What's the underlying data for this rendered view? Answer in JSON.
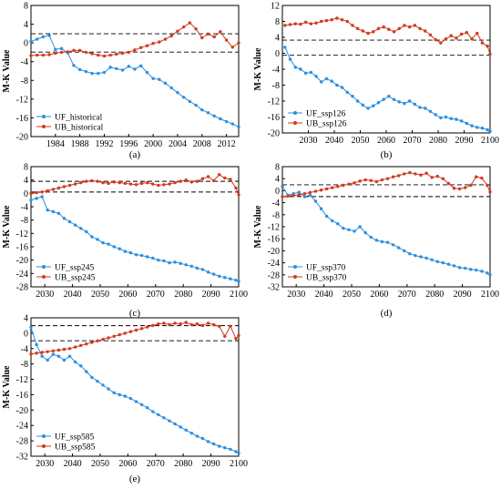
{
  "colors": {
    "uf": "#2b8fe0",
    "ub": "#d03a1e",
    "axis": "#000000",
    "threshold": "#000000"
  },
  "chart_data": [
    {
      "type": "line",
      "panel": "(a)",
      "ylabel": "M-K Value",
      "xlim": [
        1980,
        2014
      ],
      "ylim": [
        -20,
        8
      ],
      "xticks": [
        1984,
        1988,
        1992,
        1996,
        2000,
        2004,
        2008,
        2012
      ],
      "yticks": [
        -20,
        -16,
        -12,
        -8,
        -4,
        0,
        4,
        8
      ],
      "thresholds": [
        1.96,
        -1.96
      ],
      "legend_position": "bottom-left",
      "series": [
        {
          "name": "UF_historical",
          "role": "uf",
          "x": [
            1980,
            1981,
            1982,
            1983,
            1984,
            1985,
            1986,
            1987,
            1988,
            1989,
            1990,
            1991,
            1992,
            1993,
            1994,
            1995,
            1996,
            1997,
            1998,
            1999,
            2000,
            2001,
            2002,
            2003,
            2004,
            2005,
            2006,
            2007,
            2008,
            2009,
            2010,
            2011,
            2012,
            2013,
            2014
          ],
          "y": [
            0.3,
            0.8,
            1.3,
            1.6,
            -1.4,
            -1.2,
            -2.1,
            -4.8,
            -5.7,
            -6.1,
            -6.5,
            -6.5,
            -6.3,
            -5.2,
            -5.5,
            -5.8,
            -5.0,
            -5.6,
            -4.9,
            -6.3,
            -7.6,
            -7.8,
            -8.6,
            -9.6,
            -10.6,
            -11.6,
            -12.5,
            -13.3,
            -14.3,
            -14.9,
            -15.6,
            -16.2,
            -16.8,
            -17.3,
            -17.9
          ]
        },
        {
          "name": "UB_historical",
          "role": "ub",
          "x": [
            1980,
            1981,
            1982,
            1983,
            1984,
            1985,
            1986,
            1987,
            1988,
            1989,
            1990,
            1991,
            1992,
            1993,
            1994,
            1995,
            1996,
            1997,
            1998,
            1999,
            2000,
            2001,
            2002,
            2003,
            2004,
            2005,
            2006,
            2007,
            2008,
            2009,
            2010,
            2011,
            2012,
            2013,
            2014
          ],
          "y": [
            -2.7,
            -2.6,
            -2.6,
            -2.5,
            -2.2,
            -2.0,
            -1.9,
            -1.6,
            -1.6,
            -2.0,
            -2.3,
            -2.6,
            -2.8,
            -2.6,
            -2.4,
            -2.2,
            -2.0,
            -1.5,
            -1.0,
            -0.6,
            -0.1,
            0.2,
            0.8,
            1.5,
            2.5,
            3.4,
            4.3,
            3.0,
            1.1,
            1.9,
            1.3,
            2.4,
            0.6,
            -0.9,
            0.0
          ]
        }
      ]
    },
    {
      "type": "line",
      "panel": "(b)",
      "ylabel": "M-K Value",
      "xlim": [
        2020,
        2100
      ],
      "ylim": [
        -20,
        12
      ],
      "xticks": [
        2030,
        2040,
        2050,
        2060,
        2070,
        2080,
        2090,
        2100
      ],
      "yticks": [
        -20,
        -16,
        -12,
        -8,
        -4,
        0,
        4,
        8,
        12
      ],
      "thresholds": [
        3.3,
        -0.5
      ],
      "legend_position": "bottom-left",
      "series": [
        {
          "name": "UF_ssp126",
          "role": "uf",
          "x": [
            2021,
            2023,
            2025,
            2027,
            2029,
            2031,
            2033,
            2035,
            2037,
            2039,
            2041,
            2043,
            2045,
            2047,
            2049,
            2051,
            2053,
            2055,
            2057,
            2059,
            2061,
            2063,
            2065,
            2067,
            2069,
            2071,
            2073,
            2075,
            2077,
            2079,
            2081,
            2083,
            2085,
            2087,
            2089,
            2091,
            2093,
            2095,
            2097,
            2099,
            2100
          ],
          "y": [
            1.5,
            -1.5,
            -3.5,
            -4.0,
            -5.0,
            -4.8,
            -5.8,
            -7.2,
            -6.4,
            -7.0,
            -8.0,
            -8.6,
            -9.8,
            -10.8,
            -12.0,
            -13.0,
            -13.8,
            -13.2,
            -12.4,
            -11.6,
            -10.8,
            -11.6,
            -12.2,
            -12.6,
            -12.0,
            -12.8,
            -13.6,
            -13.8,
            -14.6,
            -15.4,
            -16.2,
            -16.0,
            -16.4,
            -16.6,
            -17.0,
            -17.6,
            -18.2,
            -18.6,
            -18.8,
            -19.2,
            -19.6
          ]
        },
        {
          "name": "UB_ssp126",
          "role": "ub",
          "x": [
            2021,
            2023,
            2025,
            2027,
            2029,
            2031,
            2033,
            2035,
            2037,
            2039,
            2041,
            2043,
            2045,
            2047,
            2049,
            2051,
            2053,
            2055,
            2057,
            2059,
            2061,
            2063,
            2065,
            2067,
            2069,
            2071,
            2073,
            2075,
            2077,
            2079,
            2081,
            2083,
            2085,
            2087,
            2089,
            2091,
            2093,
            2095,
            2097,
            2099,
            2100
          ],
          "y": [
            7.0,
            7.2,
            7.4,
            7.3,
            7.8,
            7.4,
            7.6,
            8.0,
            8.2,
            8.4,
            8.8,
            8.4,
            8.0,
            7.0,
            6.2,
            5.6,
            5.0,
            5.4,
            6.2,
            6.6,
            6.0,
            5.4,
            6.2,
            7.0,
            6.6,
            7.0,
            6.2,
            5.6,
            4.6,
            3.4,
            2.6,
            3.6,
            4.4,
            3.8,
            4.8,
            5.2,
            3.6,
            5.0,
            2.6,
            1.8,
            -0.2
          ]
        }
      ]
    },
    {
      "type": "line",
      "panel": "(c)",
      "ylabel": "M-K Value",
      "xlim": [
        2025,
        2100
      ],
      "ylim": [
        -28,
        8
      ],
      "xticks": [
        2030,
        2040,
        2050,
        2060,
        2070,
        2080,
        2090,
        2100
      ],
      "yticks": [
        -28,
        -24,
        -20,
        -16,
        -12,
        -8,
        -4,
        0,
        4,
        8
      ],
      "thresholds": [
        3.6,
        0.4
      ],
      "legend_position": "bottom-left",
      "series": [
        {
          "name": "UF_ssp245",
          "role": "uf",
          "x": [
            2025,
            2027,
            2029,
            2031,
            2033,
            2035,
            2037,
            2039,
            2041,
            2043,
            2045,
            2047,
            2049,
            2051,
            2053,
            2055,
            2057,
            2059,
            2061,
            2063,
            2065,
            2067,
            2069,
            2071,
            2073,
            2075,
            2077,
            2079,
            2081,
            2083,
            2085,
            2087,
            2089,
            2091,
            2093,
            2095,
            2097,
            2099,
            2100
          ],
          "y": [
            -2.0,
            -1.5,
            -1.0,
            -5.0,
            -5.5,
            -6.0,
            -7.5,
            -8.5,
            -9.5,
            -10.5,
            -11.5,
            -13.0,
            -13.8,
            -14.8,
            -15.2,
            -16.0,
            -16.6,
            -17.4,
            -17.8,
            -18.4,
            -18.6,
            -19.0,
            -19.4,
            -20.0,
            -20.2,
            -20.8,
            -20.6,
            -21.0,
            -21.4,
            -21.8,
            -22.4,
            -22.8,
            -23.6,
            -24.2,
            -24.8,
            -25.2,
            -25.6,
            -26.0,
            -26.4
          ]
        },
        {
          "name": "UB_ssp245",
          "role": "ub",
          "x": [
            2025,
            2027,
            2029,
            2031,
            2033,
            2035,
            2037,
            2039,
            2041,
            2043,
            2045,
            2047,
            2049,
            2051,
            2053,
            2055,
            2057,
            2059,
            2061,
            2063,
            2065,
            2067,
            2069,
            2071,
            2073,
            2075,
            2077,
            2079,
            2081,
            2083,
            2085,
            2087,
            2089,
            2091,
            2093,
            2095,
            2097,
            2099,
            2100
          ],
          "y": [
            0.0,
            0.2,
            0.4,
            0.8,
            1.2,
            1.6,
            2.0,
            2.4,
            2.8,
            3.2,
            3.6,
            3.8,
            3.6,
            3.2,
            3.0,
            3.4,
            3.2,
            3.0,
            2.8,
            2.6,
            3.0,
            3.2,
            2.8,
            2.4,
            2.6,
            2.8,
            3.2,
            3.6,
            4.0,
            3.4,
            3.6,
            4.4,
            5.0,
            3.8,
            5.6,
            4.6,
            4.2,
            1.6,
            -0.4
          ]
        }
      ]
    },
    {
      "type": "line",
      "panel": "(d)",
      "ylabel": "M-K Value",
      "xlim": [
        2025,
        2100
      ],
      "ylim": [
        -32,
        8
      ],
      "xticks": [
        2030,
        2040,
        2050,
        2060,
        2070,
        2080,
        2090,
        2100
      ],
      "yticks": [
        -32,
        -28,
        -24,
        -20,
        -16,
        -12,
        -8,
        -4,
        0,
        4,
        8
      ],
      "thresholds": [
        1.96,
        -1.96
      ],
      "legend_position": "bottom-left",
      "series": [
        {
          "name": "UF_ssp370",
          "role": "uf",
          "x": [
            2025,
            2027,
            2029,
            2031,
            2033,
            2035,
            2037,
            2039,
            2041,
            2043,
            2045,
            2047,
            2049,
            2051,
            2053,
            2055,
            2057,
            2059,
            2061,
            2063,
            2065,
            2067,
            2069,
            2071,
            2073,
            2075,
            2077,
            2079,
            2081,
            2083,
            2085,
            2087,
            2089,
            2091,
            2093,
            2095,
            2097,
            2099,
            2100
          ],
          "y": [
            1.5,
            -1.5,
            -1.0,
            -0.5,
            -2.0,
            -1.5,
            -3.5,
            -6.0,
            -8.5,
            -10.0,
            -11.0,
            -12.5,
            -13.0,
            -13.5,
            -12.0,
            -14.0,
            -15.5,
            -16.5,
            -17.0,
            -17.2,
            -18.0,
            -19.0,
            -20.0,
            -21.0,
            -21.6,
            -22.0,
            -22.4,
            -23.0,
            -23.6,
            -24.0,
            -24.5,
            -25.0,
            -25.6,
            -25.8,
            -26.2,
            -26.4,
            -26.8,
            -27.4,
            -28.0
          ]
        },
        {
          "name": "UB_ssp370",
          "role": "ub",
          "x": [
            2025,
            2027,
            2029,
            2031,
            2033,
            2035,
            2037,
            2039,
            2041,
            2043,
            2045,
            2047,
            2049,
            2051,
            2053,
            2055,
            2057,
            2059,
            2061,
            2063,
            2065,
            2067,
            2069,
            2071,
            2073,
            2075,
            2077,
            2079,
            2081,
            2083,
            2085,
            2087,
            2089,
            2091,
            2093,
            2095,
            2097,
            2099,
            2100
          ],
          "y": [
            -2.0,
            -1.8,
            -1.6,
            -1.4,
            -1.0,
            -0.6,
            -0.2,
            0.2,
            0.6,
            1.0,
            1.4,
            1.8,
            2.2,
            2.6,
            3.2,
            3.6,
            3.4,
            3.0,
            3.6,
            4.0,
            4.6,
            5.0,
            5.6,
            6.0,
            5.6,
            5.2,
            5.8,
            4.4,
            4.8,
            4.0,
            2.4,
            0.8,
            0.6,
            1.0,
            1.8,
            4.6,
            4.2,
            1.8,
            -0.4
          ]
        }
      ]
    },
    {
      "type": "line",
      "panel": "(e)",
      "ylabel": "M-K Value",
      "xlim": [
        2025,
        2100
      ],
      "ylim": [
        -32,
        4
      ],
      "xticks": [
        2030,
        2040,
        2050,
        2060,
        2070,
        2080,
        2090,
        2100
      ],
      "yticks": [
        -32,
        -28,
        -24,
        -20,
        -16,
        -12,
        -8,
        -4,
        0,
        4
      ],
      "thresholds": [
        1.96,
        -1.96
      ],
      "legend_position": "bottom-left",
      "series": [
        {
          "name": "UF_ssp585",
          "role": "uf",
          "x": [
            2025,
            2027,
            2029,
            2031,
            2033,
            2035,
            2037,
            2039,
            2041,
            2043,
            2045,
            2047,
            2049,
            2051,
            2053,
            2055,
            2057,
            2059,
            2061,
            2063,
            2065,
            2067,
            2069,
            2071,
            2073,
            2075,
            2077,
            2079,
            2081,
            2083,
            2085,
            2087,
            2089,
            2091,
            2093,
            2095,
            2097,
            2099,
            2100
          ],
          "y": [
            1.5,
            -3.0,
            -6.0,
            -7.0,
            -5.5,
            -6.0,
            -7.0,
            -6.0,
            -7.5,
            -8.5,
            -10.0,
            -11.5,
            -12.5,
            -13.5,
            -14.5,
            -15.5,
            -16.0,
            -16.4,
            -17.0,
            -17.8,
            -18.6,
            -19.4,
            -20.4,
            -21.2,
            -22.0,
            -22.8,
            -23.6,
            -24.4,
            -25.2,
            -26.0,
            -26.8,
            -27.4,
            -28.2,
            -28.8,
            -29.4,
            -29.8,
            -30.2,
            -30.8,
            -31.2
          ]
        },
        {
          "name": "UB_ssp585",
          "role": "ub",
          "x": [
            2025,
            2027,
            2029,
            2031,
            2033,
            2035,
            2037,
            2039,
            2041,
            2043,
            2045,
            2047,
            2049,
            2051,
            2053,
            2055,
            2057,
            2059,
            2061,
            2063,
            2065,
            2067,
            2069,
            2071,
            2073,
            2075,
            2077,
            2079,
            2081,
            2083,
            2085,
            2087,
            2089,
            2091,
            2093,
            2095,
            2097,
            2099,
            2100
          ],
          "y": [
            -5.4,
            -5.2,
            -5.0,
            -4.8,
            -4.6,
            -4.4,
            -4.2,
            -4.0,
            -3.6,
            -3.2,
            -2.8,
            -2.4,
            -2.0,
            -1.6,
            -1.2,
            -0.8,
            -0.4,
            0.0,
            0.4,
            0.8,
            1.2,
            1.6,
            2.0,
            2.4,
            2.6,
            2.2,
            2.6,
            2.4,
            2.8,
            2.2,
            2.4,
            2.0,
            2.6,
            2.2,
            1.8,
            -0.8,
            1.8,
            -1.4,
            -0.6
          ]
        }
      ]
    }
  ]
}
